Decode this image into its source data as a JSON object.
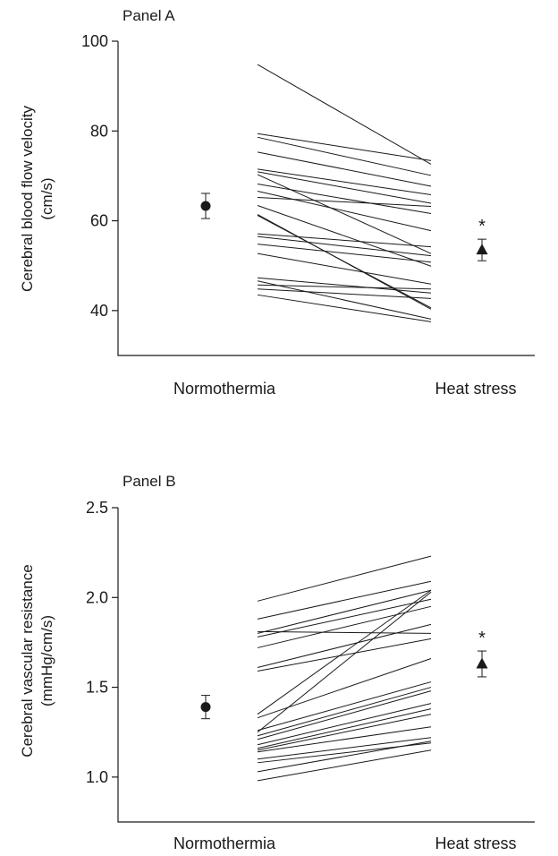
{
  "chart_data": [
    {
      "type": "line",
      "panel_label": "Panel A",
      "ylabel": "Cerebral blood flow velocity",
      "ylabel_unit": "(cm/s)",
      "categories": [
        "Normothermia",
        "Heat stress"
      ],
      "ylim": [
        30,
        100
      ],
      "yticks": [
        40,
        60,
        80,
        100
      ],
      "grid": false,
      "series": [
        {
          "values": [
            94.8,
            72.6
          ]
        },
        {
          "values": [
            79.4,
            73.4
          ]
        },
        {
          "values": [
            78.6,
            70.1
          ]
        },
        {
          "values": [
            75.3,
            67.7
          ]
        },
        {
          "values": [
            71.5,
            65.8
          ]
        },
        {
          "values": [
            70.9,
            63.9
          ]
        },
        {
          "values": [
            70.3,
            52.7
          ]
        },
        {
          "values": [
            68.2,
            61.6
          ]
        },
        {
          "values": [
            66.6,
            57.8
          ]
        },
        {
          "values": [
            65.2,
            63.2
          ]
        },
        {
          "values": [
            63.4,
            49.9
          ]
        },
        {
          "values": [
            61.4,
            40.3
          ]
        },
        {
          "values": [
            61.2,
            40.6
          ]
        },
        {
          "values": [
            57.1,
            54.2
          ]
        },
        {
          "values": [
            56.5,
            52.2
          ]
        },
        {
          "values": [
            54.8,
            50.8
          ]
        },
        {
          "values": [
            52.7,
            45.9
          ]
        },
        {
          "values": [
            47.3,
            43.9
          ]
        },
        {
          "values": [
            46.6,
            38.1
          ]
        },
        {
          "values": [
            45.7,
            44.8
          ]
        },
        {
          "values": [
            44.8,
            42.7
          ]
        },
        {
          "values": [
            43.5,
            37.5
          ]
        }
      ],
      "summary": [
        {
          "category": "Normothermia",
          "marker": "circle",
          "mean": 63.3,
          "error": 2.8,
          "annotation": ""
        },
        {
          "category": "Heat stress",
          "marker": "triangle",
          "mean": 53.5,
          "error": 2.4,
          "annotation": "*"
        }
      ]
    },
    {
      "type": "line",
      "panel_label": "Panel B",
      "ylabel": "Cerebral vascular resistance",
      "ylabel_unit": "(mmHg/cm/s)",
      "categories": [
        "Normothermia",
        "Heat stress"
      ],
      "ylim": [
        0.75,
        2.5
      ],
      "yticks": [
        1.0,
        1.5,
        2.0,
        2.5
      ],
      "grid": false,
      "series": [
        {
          "values": [
            1.98,
            2.23
          ]
        },
        {
          "values": [
            1.88,
            2.09
          ]
        },
        {
          "values": [
            1.81,
            1.8
          ]
        },
        {
          "values": [
            1.8,
            2.04
          ]
        },
        {
          "values": [
            1.78,
            1.99
          ]
        },
        {
          "values": [
            1.72,
            1.95
          ]
        },
        {
          "values": [
            1.61,
            1.85
          ]
        },
        {
          "values": [
            1.59,
            1.77
          ]
        },
        {
          "values": [
            1.35,
            2.04
          ]
        },
        {
          "values": [
            1.33,
            1.66
          ]
        },
        {
          "values": [
            1.26,
            1.53
          ]
        },
        {
          "values": [
            1.25,
            2.03
          ]
        },
        {
          "values": [
            1.23,
            1.5
          ]
        },
        {
          "values": [
            1.21,
            1.48
          ]
        },
        {
          "values": [
            1.18,
            1.41
          ]
        },
        {
          "values": [
            1.16,
            1.38
          ]
        },
        {
          "values": [
            1.15,
            1.35
          ]
        },
        {
          "values": [
            1.14,
            1.28
          ]
        },
        {
          "values": [
            1.1,
            1.22
          ]
        },
        {
          "values": [
            1.08,
            1.19
          ]
        },
        {
          "values": [
            1.03,
            1.2
          ]
        },
        {
          "values": [
            0.98,
            1.15
          ]
        }
      ],
      "summary": [
        {
          "category": "Normothermia",
          "marker": "circle",
          "mean": 1.39,
          "error": 0.065,
          "annotation": ""
        },
        {
          "category": "Heat stress",
          "marker": "triangle",
          "mean": 1.63,
          "error": 0.072,
          "annotation": "*"
        }
      ]
    }
  ]
}
